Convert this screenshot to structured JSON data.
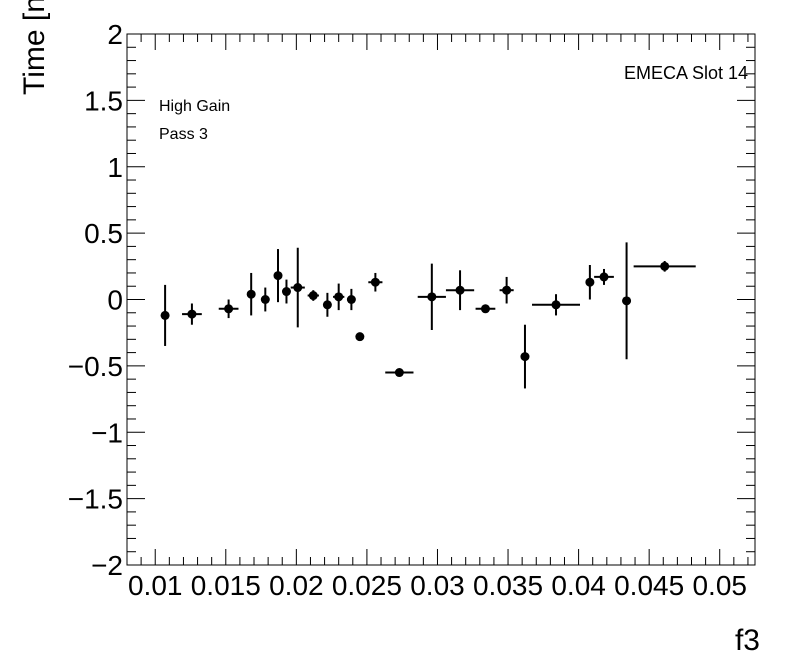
{
  "annotations": {
    "gain": "High Gain",
    "pass": "Pass 3",
    "slot": "EMECA Slot 14"
  },
  "chart_data": {
    "type": "scatter",
    "title": "",
    "xlabel": "f3",
    "ylabel": "Time [ns]",
    "xlim": [
      0.008,
      0.0525
    ],
    "ylim": [
      -2,
      2
    ],
    "x_ticks": [
      {
        "value": 0.01,
        "label": "0.01"
      },
      {
        "value": 0.015,
        "label": "0.015"
      },
      {
        "value": 0.02,
        "label": "0.02"
      },
      {
        "value": 0.025,
        "label": "0.025"
      },
      {
        "value": 0.03,
        "label": "0.03"
      },
      {
        "value": 0.035,
        "label": "0.035"
      },
      {
        "value": 0.04,
        "label": "0.04"
      },
      {
        "value": 0.045,
        "label": "0.045"
      },
      {
        "value": 0.05,
        "label": "0.05"
      }
    ],
    "y_ticks": [
      {
        "value": 2,
        "label": "2"
      },
      {
        "value": 1.5,
        "label": "1.5"
      },
      {
        "value": 1,
        "label": "1"
      },
      {
        "value": 0.5,
        "label": "0.5"
      },
      {
        "value": 0,
        "label": "0"
      },
      {
        "value": -0.5,
        "label": "−0.5"
      },
      {
        "value": -1,
        "label": "−1"
      },
      {
        "value": -1.5,
        "label": "−1.5"
      },
      {
        "value": -2,
        "label": "−2"
      }
    ],
    "grid": false,
    "marker_color": "#000000",
    "points": [
      {
        "x": 0.0107,
        "y": -0.12,
        "xerr_lo": 0.0003,
        "xerr_hi": 0.0003,
        "yerr": 0.23
      },
      {
        "x": 0.0126,
        "y": -0.11,
        "xerr_lo": 0.0007,
        "xerr_hi": 0.0007,
        "yerr": 0.08
      },
      {
        "x": 0.0152,
        "y": -0.07,
        "xerr_lo": 0.0007,
        "xerr_hi": 0.0007,
        "yerr": 0.07
      },
      {
        "x": 0.0168,
        "y": 0.04,
        "xerr_lo": 0.0002,
        "xerr_hi": 0.0002,
        "yerr": 0.16
      },
      {
        "x": 0.0178,
        "y": 0.0,
        "xerr_lo": 0.0003,
        "xerr_hi": 0.0003,
        "yerr": 0.09
      },
      {
        "x": 0.0187,
        "y": 0.18,
        "xerr_lo": 0.0002,
        "xerr_hi": 0.0002,
        "yerr": 0.2
      },
      {
        "x": 0.0193,
        "y": 0.06,
        "xerr_lo": 0.0002,
        "xerr_hi": 0.0002,
        "yerr": 0.09
      },
      {
        "x": 0.0201,
        "y": 0.09,
        "xerr_lo": 0.0005,
        "xerr_hi": 0.0005,
        "yerr": 0.3
      },
      {
        "x": 0.0212,
        "y": 0.03,
        "xerr_lo": 0.0004,
        "xerr_hi": 0.0004,
        "yerr": 0.04
      },
      {
        "x": 0.0222,
        "y": -0.04,
        "xerr_lo": 0.0002,
        "xerr_hi": 0.0002,
        "yerr": 0.09
      },
      {
        "x": 0.023,
        "y": 0.02,
        "xerr_lo": 0.0004,
        "xerr_hi": 0.0004,
        "yerr": 0.1
      },
      {
        "x": 0.0239,
        "y": 0.0,
        "xerr_lo": 0.0002,
        "xerr_hi": 0.0002,
        "yerr": 0.08
      },
      {
        "x": 0.0245,
        "y": -0.28,
        "xerr_lo": 0.0001,
        "xerr_hi": 0.0001,
        "yerr": 0.0
      },
      {
        "x": 0.0256,
        "y": 0.13,
        "xerr_lo": 0.0005,
        "xerr_hi": 0.0005,
        "yerr": 0.07
      },
      {
        "x": 0.0273,
        "y": -0.55,
        "xerr_lo": 0.001,
        "xerr_hi": 0.001,
        "yerr": 0.0
      },
      {
        "x": 0.0296,
        "y": 0.02,
        "xerr_lo": 0.001,
        "xerr_hi": 0.001,
        "yerr": 0.25
      },
      {
        "x": 0.0316,
        "y": 0.07,
        "xerr_lo": 0.001,
        "xerr_hi": 0.001,
        "yerr": 0.15
      },
      {
        "x": 0.0334,
        "y": -0.07,
        "xerr_lo": 0.0007,
        "xerr_hi": 0.0007,
        "yerr": 0.0
      },
      {
        "x": 0.0349,
        "y": 0.07,
        "xerr_lo": 0.0005,
        "xerr_hi": 0.0005,
        "yerr": 0.1
      },
      {
        "x": 0.0362,
        "y": -0.43,
        "xerr_lo": 0.0003,
        "xerr_hi": 0.0003,
        "yerr": 0.24
      },
      {
        "x": 0.0384,
        "y": -0.04,
        "xerr_lo": 0.0017,
        "xerr_hi": 0.0017,
        "yerr": 0.08
      },
      {
        "x": 0.0408,
        "y": 0.13,
        "xerr_lo": 0.0002,
        "xerr_hi": 0.0002,
        "yerr": 0.13
      },
      {
        "x": 0.0418,
        "y": 0.17,
        "xerr_lo": 0.0007,
        "xerr_hi": 0.0007,
        "yerr": 0.06
      },
      {
        "x": 0.0434,
        "y": -0.01,
        "xerr_lo": 0.0003,
        "xerr_hi": 0.0003,
        "yerr": 0.44
      },
      {
        "x": 0.0461,
        "y": 0.25,
        "xerr_lo": 0.0022,
        "xerr_hi": 0.0022,
        "yerr": 0.04
      }
    ]
  }
}
